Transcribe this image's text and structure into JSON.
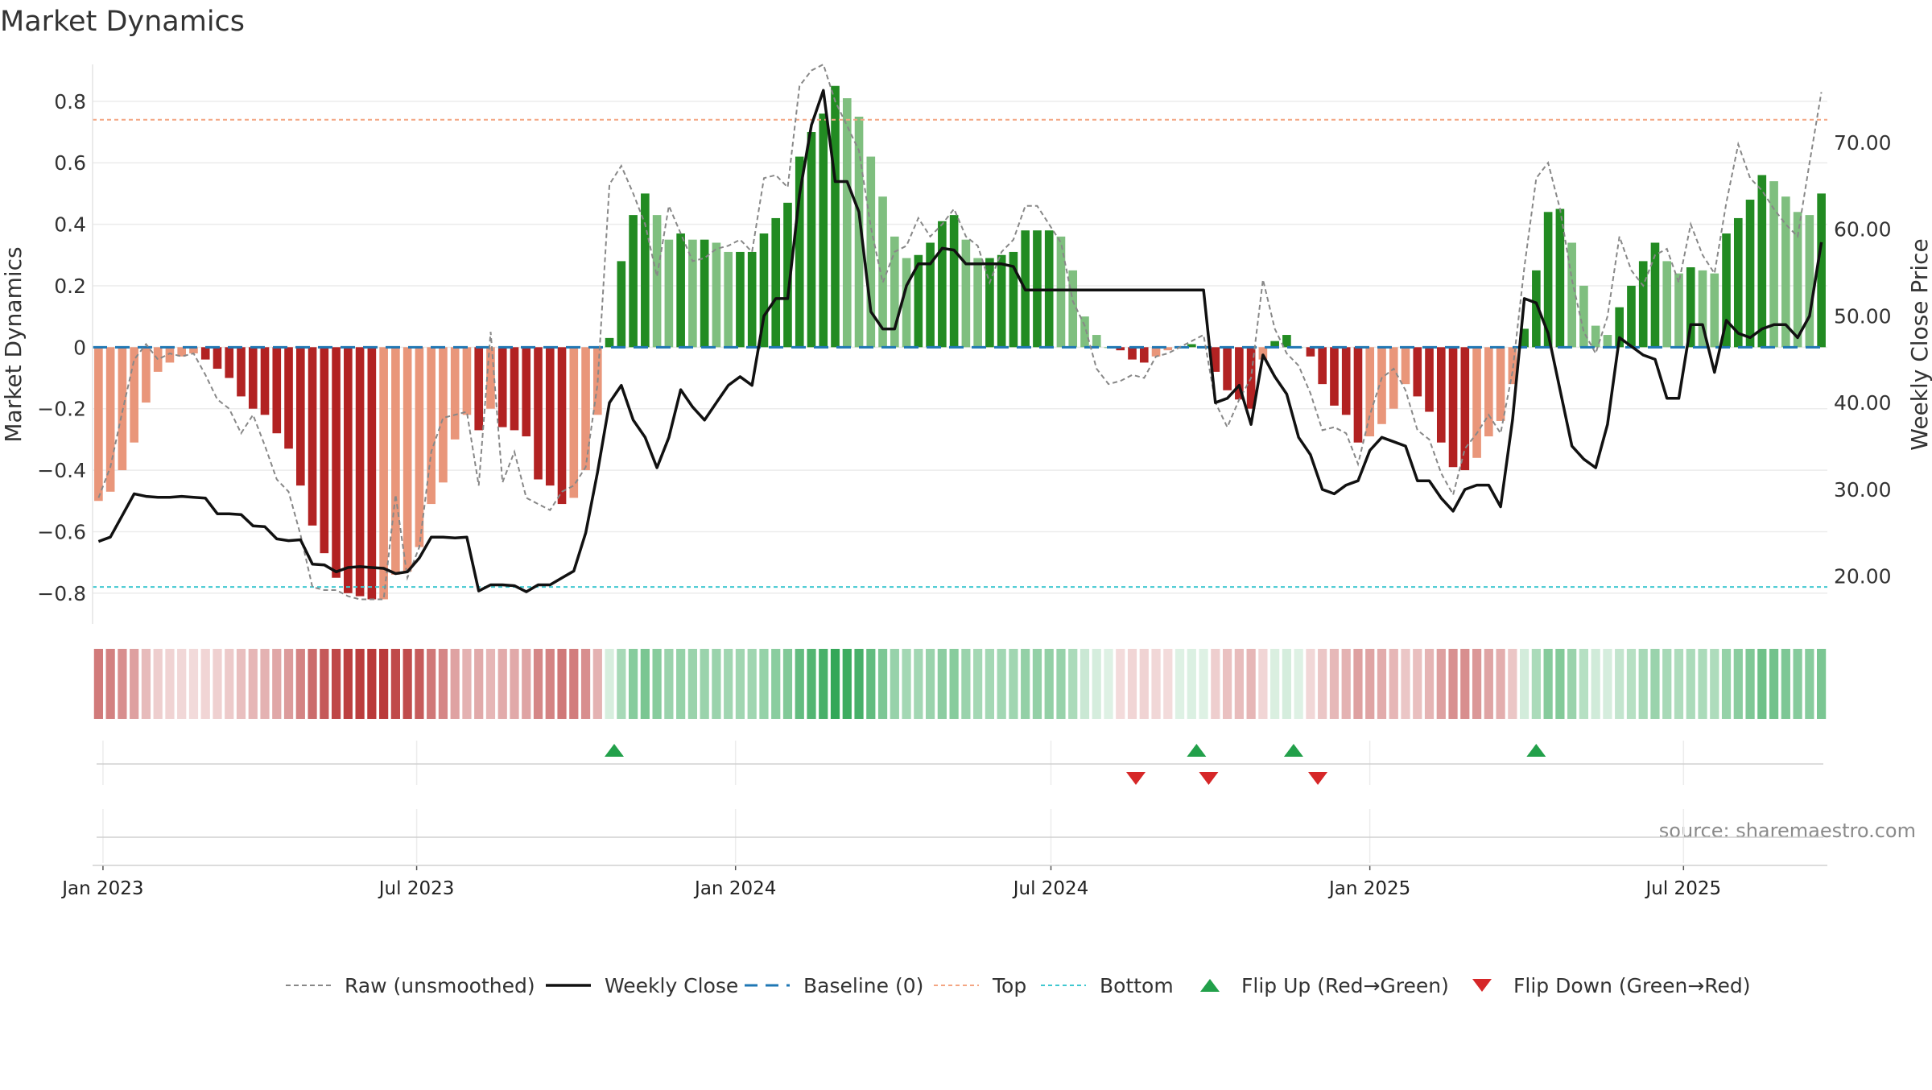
{
  "title": "Market Dynamics",
  "source": "source: sharemaestro.com",
  "colors": {
    "green_dark": "#228b22",
    "green_light": "#7fbf7f",
    "red_dark": "#b22222",
    "red_light": "#e9967a",
    "top_line": "#f4a582",
    "bottom_line": "#40c8d0",
    "baseline": "#1f77b4",
    "raw": "#888888",
    "close": "#111111",
    "flip_up": "#22a04a",
    "flip_down": "#d62728"
  },
  "chart_data": {
    "type": "bar",
    "title": "Market Dynamics",
    "ylabel": "Market Dynamics",
    "y2label": "Weekly Close Price",
    "ylim": [
      -0.9,
      0.92
    ],
    "y2lim": [
      14.5,
      79.0
    ],
    "yticks": [
      "0.8",
      "0.6",
      "0.4",
      "0.2",
      "0",
      "−0.2",
      "−0.4",
      "−0.6",
      "−0.8"
    ],
    "y2ticks": [
      "70.00",
      "60.00",
      "50.00",
      "40.00",
      "30.00",
      "20.00"
    ],
    "xticks": [
      {
        "label": "Jan 2023",
        "date": "2023-01-01"
      },
      {
        "label": "Jul 2023",
        "date": "2023-07-01"
      },
      {
        "label": "Jan 2024",
        "date": "2024-01-01"
      },
      {
        "label": "Jul 2024",
        "date": "2024-07-01"
      },
      {
        "label": "Jan 2025",
        "date": "2025-01-01"
      },
      {
        "label": "Jul 2025",
        "date": "2025-07-01"
      }
    ],
    "top": 0.74,
    "bottom": -0.78,
    "baseline": 0,
    "start_date": "2022-12-26",
    "end_date": "2025-09-22",
    "weekly_dynamics": [
      -0.5,
      -0.47,
      -0.4,
      -0.31,
      -0.18,
      -0.08,
      -0.05,
      -0.03,
      -0.02,
      -0.04,
      -0.07,
      -0.1,
      -0.16,
      -0.2,
      -0.22,
      -0.28,
      -0.33,
      -0.45,
      -0.58,
      -0.67,
      -0.75,
      -0.8,
      -0.81,
      -0.82,
      -0.82,
      -0.74,
      -0.73,
      -0.65,
      -0.51,
      -0.44,
      -0.3,
      -0.22,
      -0.27,
      -0.2,
      -0.26,
      -0.27,
      -0.29,
      -0.43,
      -0.45,
      -0.51,
      -0.49,
      -0.4,
      -0.22,
      0.03,
      0.28,
      0.43,
      0.5,
      0.43,
      0.35,
      0.37,
      0.35,
      0.35,
      0.34,
      0.31,
      0.31,
      0.31,
      0.37,
      0.42,
      0.47,
      0.62,
      0.7,
      0.76,
      0.85,
      0.81,
      0.75,
      0.62,
      0.49,
      0.36,
      0.29,
      0.3,
      0.34,
      0.41,
      0.43,
      0.35,
      0.29,
      0.29,
      0.3,
      0.31,
      0.38,
      0.38,
      0.38,
      0.36,
      0.25,
      0.1,
      0.04,
      0.0,
      -0.01,
      -0.04,
      -0.05,
      -0.03,
      -0.01,
      0.0,
      0.01,
      0.0,
      -0.08,
      -0.14,
      -0.17,
      -0.2,
      -0.04,
      0.02,
      0.04,
      0.0,
      -0.03,
      -0.12,
      -0.19,
      -0.22,
      -0.31,
      -0.29,
      -0.25,
      -0.2,
      -0.12,
      -0.16,
      -0.21,
      -0.31,
      -0.39,
      -0.4,
      -0.36,
      -0.29,
      -0.24,
      -0.12,
      0.06,
      0.25,
      0.44,
      0.45,
      0.34,
      0.2,
      0.07,
      0.04,
      0.13,
      0.2,
      0.28,
      0.34,
      0.28,
      0.24,
      0.26,
      0.25,
      0.24,
      0.37,
      0.42,
      0.48,
      0.56,
      0.54,
      0.49,
      0.44,
      0.43,
      0.5
    ],
    "raw_unsmoothed": [
      -0.49,
      -0.39,
      -0.21,
      -0.04,
      0.01,
      -0.04,
      -0.02,
      -0.03,
      -0.02,
      -0.09,
      -0.17,
      -0.2,
      -0.28,
      -0.22,
      -0.32,
      -0.43,
      -0.47,
      -0.61,
      -0.78,
      -0.79,
      -0.79,
      -0.81,
      -0.82,
      -0.82,
      -0.82,
      -0.48,
      -0.75,
      -0.65,
      -0.34,
      -0.23,
      -0.22,
      -0.21,
      -0.45,
      0.05,
      -0.44,
      -0.34,
      -0.49,
      -0.51,
      -0.53,
      -0.47,
      -0.45,
      -0.39,
      -0.12,
      0.53,
      0.59,
      0.5,
      0.4,
      0.23,
      0.46,
      0.37,
      0.28,
      0.29,
      0.32,
      0.33,
      0.35,
      0.31,
      0.55,
      0.56,
      0.52,
      0.85,
      0.9,
      0.92,
      0.8,
      0.72,
      0.64,
      0.39,
      0.21,
      0.31,
      0.33,
      0.42,
      0.36,
      0.4,
      0.45,
      0.36,
      0.33,
      0.21,
      0.31,
      0.35,
      0.46,
      0.46,
      0.4,
      0.34,
      0.15,
      0.07,
      -0.07,
      -0.12,
      -0.11,
      -0.09,
      -0.1,
      -0.03,
      -0.02,
      0.0,
      0.02,
      0.04,
      -0.18,
      -0.26,
      -0.17,
      -0.1,
      0.22,
      0.06,
      -0.02,
      -0.06,
      -0.15,
      -0.27,
      -0.26,
      -0.28,
      -0.38,
      -0.22,
      -0.1,
      -0.07,
      -0.14,
      -0.27,
      -0.3,
      -0.41,
      -0.48,
      -0.33,
      -0.28,
      -0.22,
      -0.28,
      -0.08,
      0.26,
      0.55,
      0.6,
      0.45,
      0.22,
      0.05,
      -0.02,
      0.1,
      0.36,
      0.25,
      0.2,
      0.3,
      0.32,
      0.21,
      0.4,
      0.3,
      0.24,
      0.47,
      0.66,
      0.55,
      0.51,
      0.45,
      0.4,
      0.36,
      0.6,
      0.83
    ],
    "weekly_close": [
      24.0,
      24.5,
      27.0,
      29.5,
      29.2,
      29.1,
      29.1,
      29.2,
      29.1,
      29.0,
      27.2,
      27.2,
      27.1,
      25.8,
      25.7,
      24.3,
      24.1,
      24.2,
      21.4,
      21.3,
      20.5,
      21.0,
      21.1,
      21.0,
      20.9,
      20.3,
      20.5,
      22.1,
      24.5,
      24.5,
      24.4,
      24.5,
      18.3,
      19.0,
      19.0,
      18.9,
      18.2,
      19.0,
      19.0,
      19.8,
      20.6,
      25.0,
      32.0,
      40.0,
      42.0,
      38.0,
      36.0,
      32.5,
      36.0,
      41.5,
      39.5,
      38.0,
      40.0,
      42.0,
      43.0,
      42.0,
      50.0,
      52.0,
      52.0,
      64.0,
      72.0,
      76.0,
      65.5,
      65.5,
      62.0,
      50.5,
      48.5,
      48.5,
      53.5,
      56.0,
      56.0,
      57.8,
      57.6,
      56.0,
      56.0,
      56.0,
      56.0,
      55.7,
      53.0,
      53.0,
      53.0,
      53.0,
      53.0,
      53.0,
      53.0,
      53.0,
      53.0,
      53.0,
      53.0,
      53.0,
      53.0,
      53.0,
      53.0,
      53.0,
      40.0,
      40.5,
      42.0,
      37.5,
      45.5,
      43.0,
      41.0,
      36.0,
      34.0,
      30.0,
      29.5,
      30.5,
      31.0,
      34.5,
      36.0,
      35.5,
      35.0,
      31.0,
      31.0,
      29.0,
      27.5,
      30.0,
      30.5,
      30.5,
      28.0,
      38.0,
      52.0,
      51.5,
      48.0,
      41.5,
      35.0,
      33.5,
      32.5,
      37.5,
      47.5,
      46.5,
      45.5,
      45.0,
      40.5,
      40.5,
      49.0,
      49.0,
      43.5,
      49.5,
      48.0,
      47.5,
      48.5,
      49.0,
      49.0,
      47.5,
      50.0,
      58.5
    ],
    "flip_up_dates": [
      "2023-10-23",
      "2024-09-23",
      "2024-11-18",
      "2025-04-07"
    ],
    "flip_down_dates": [
      "2024-08-19",
      "2024-09-30",
      "2024-12-02"
    ],
    "legend": {
      "raw": "Raw (unsmoothed)",
      "close": "Weekly Close",
      "baseline": "Baseline (0)",
      "top": "Top",
      "bottom": "Bottom",
      "flip_up": "Flip Up (Red→Green)",
      "flip_down": "Flip Down (Green→Red)"
    }
  }
}
